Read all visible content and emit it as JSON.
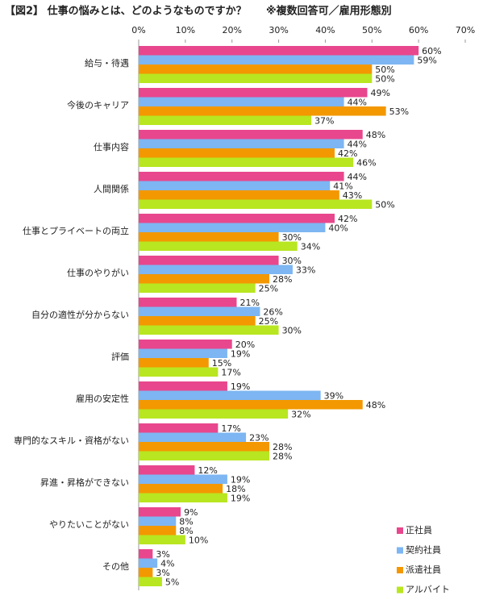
{
  "chart_data": {
    "type": "hbar",
    "title": "【図2】 仕事の悩みとは、どのようなものですか？",
    "subtitle": "※複数回答可／雇用形態別",
    "categories": [
      "給与・待遇",
      "今後のキャリア",
      "仕事内容",
      "人間関係",
      "仕事とプライベートの両立",
      "仕事のやりがい",
      "自分の適性が分からない",
      "評価",
      "雇用の安定性",
      "専門的なスキル・資格がない",
      "昇進・昇格ができない",
      "やりたいことがない",
      "その他"
    ],
    "series": [
      {
        "name": "正社員",
        "color": "#e8478d",
        "values": [
          60,
          49,
          48,
          44,
          42,
          30,
          21,
          20,
          19,
          17,
          12,
          9,
          3
        ],
        "value_labels": [
          "60%",
          "49%",
          "48%",
          "44%",
          "42%",
          "30%",
          "21%",
          "20%",
          "19%",
          "17%",
          "12%",
          "9%",
          "3%"
        ]
      },
      {
        "name": "契約社員",
        "color": "#7db6f2",
        "values": [
          59,
          44,
          44,
          41,
          40,
          33,
          26,
          19,
          39,
          23,
          19,
          8,
          4
        ],
        "value_labels": [
          "59%",
          "44%",
          "44%",
          "41%",
          "40%",
          "33%",
          "26%",
          "19%",
          "39%",
          "23%",
          "19%",
          "8%",
          "4%"
        ]
      },
      {
        "name": "派遣社員",
        "color": "#f39800",
        "values": [
          50,
          53,
          42,
          43,
          30,
          28,
          25,
          15,
          48,
          28,
          18,
          8,
          3
        ],
        "value_labels": [
          "50%",
          "53%",
          "42%",
          "43%",
          "30%",
          "28%",
          "25%",
          "15%",
          "48%",
          "28%",
          "18%",
          "8%",
          "3%"
        ]
      },
      {
        "name": "アルバイト",
        "color": "#b8e620",
        "values": [
          50,
          37,
          46,
          50,
          34,
          25,
          30,
          17,
          32,
          28,
          19,
          10,
          5
        ],
        "value_labels": [
          "50%",
          "37%",
          "46%",
          "50%",
          "34%",
          "25%",
          "30%",
          "17%",
          "32%",
          "28%",
          "19%",
          "10%",
          "5%"
        ]
      }
    ],
    "xlim": [
      0,
      70
    ],
    "xticks": [
      {
        "value": 0,
        "label": "0%"
      },
      {
        "value": 10,
        "label": "10%"
      },
      {
        "value": 20,
        "label": "20%"
      },
      {
        "value": 30,
        "label": "30%"
      },
      {
        "value": 40,
        "label": "40%"
      },
      {
        "value": 50,
        "label": "50%"
      },
      {
        "value": 60,
        "label": "60%"
      },
      {
        "value": 70,
        "label": "70%"
      }
    ],
    "legend": "bottom-right"
  }
}
